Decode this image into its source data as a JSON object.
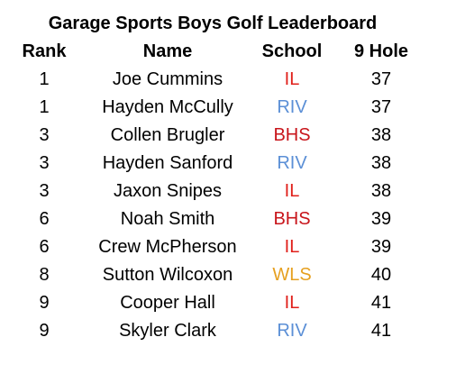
{
  "title": "Garage Sports Boys Golf Leaderboard",
  "columns": {
    "rank": "Rank",
    "name": "Name",
    "school": "School",
    "hole9": "9 Hole"
  },
  "school_colors": {
    "IL": "#e0201b",
    "RIV": "#5b8fd6",
    "BHS": "#c8151b",
    "WLS": "#e6a020"
  },
  "rows": [
    {
      "rank": "1",
      "name": "Joe Cummins",
      "school": "IL",
      "score": "37"
    },
    {
      "rank": "1",
      "name": "Hayden McCully",
      "school": "RIV",
      "score": "37"
    },
    {
      "rank": "3",
      "name": "Collen Brugler",
      "school": "BHS",
      "score": "38"
    },
    {
      "rank": "3",
      "name": "Hayden Sanford",
      "school": "RIV",
      "score": "38"
    },
    {
      "rank": "3",
      "name": "Jaxon Snipes",
      "school": "IL",
      "score": "38"
    },
    {
      "rank": "6",
      "name": "Noah Smith",
      "school": "BHS",
      "score": "39"
    },
    {
      "rank": "6",
      "name": "Crew McPherson",
      "school": "IL",
      "score": "39"
    },
    {
      "rank": "8",
      "name": "Sutton Wilcoxon",
      "school": "WLS",
      "score": "40"
    },
    {
      "rank": "9",
      "name": "Cooper Hall",
      "school": "IL",
      "score": "41"
    },
    {
      "rank": "9",
      "name": "Skyler Clark",
      "school": "RIV",
      "score": "41"
    }
  ]
}
